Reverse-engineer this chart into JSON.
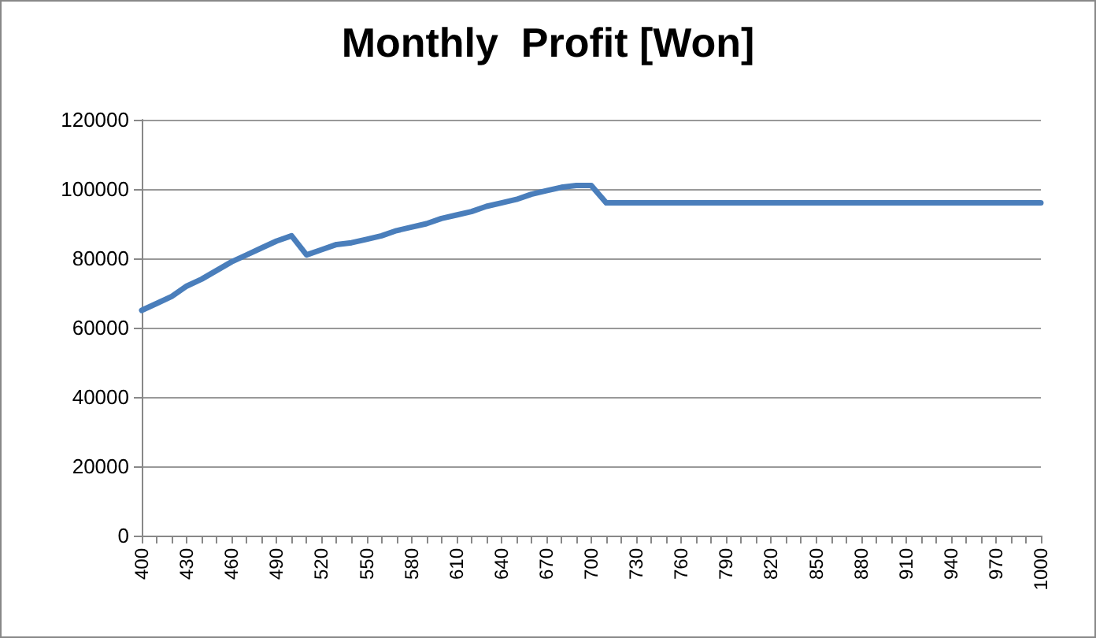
{
  "chart_data": {
    "type": "line",
    "title": "Monthly  Profit [Won]",
    "categories": [
      "400",
      null,
      null,
      "430",
      null,
      null,
      "460",
      null,
      null,
      "490",
      null,
      null,
      "520",
      null,
      null,
      "550",
      null,
      null,
      "580",
      null,
      null,
      "610",
      null,
      null,
      "640",
      null,
      null,
      "670",
      null,
      null,
      "700",
      null,
      null,
      "730",
      null,
      null,
      "760",
      null,
      null,
      "790",
      null,
      null,
      "820",
      null,
      null,
      "850",
      null,
      null,
      "880",
      null,
      null,
      "910",
      null,
      null,
      "940",
      null,
      null,
      "970",
      null,
      null,
      "1000"
    ],
    "series": [
      {
        "color": "#4a7ebb",
        "values": [
          65000,
          67000,
          69000,
          72000,
          74000,
          76500,
          79000,
          81000,
          83000,
          85000,
          86500,
          81000,
          82500,
          84000,
          84500,
          85500,
          86500,
          88000,
          89000,
          90000,
          91500,
          92500,
          93500,
          95000,
          96000,
          97000,
          98500,
          99500,
          100500,
          101000,
          101000,
          96000,
          96000,
          96000,
          96000,
          96000,
          96000,
          96000,
          96000,
          96000,
          96000,
          96000,
          96000,
          96000,
          96000,
          96000,
          96000,
          96000,
          96000,
          96000,
          96000,
          96000,
          96000,
          96000,
          96000,
          96000,
          96000,
          96000,
          96000,
          96000,
          96000
        ]
      }
    ],
    "ylim": [
      0,
      120000
    ],
    "yticks": [
      0,
      20000,
      40000,
      60000,
      80000,
      100000,
      120000
    ],
    "grid": "y",
    "marker": "none",
    "line_style": "solid"
  }
}
